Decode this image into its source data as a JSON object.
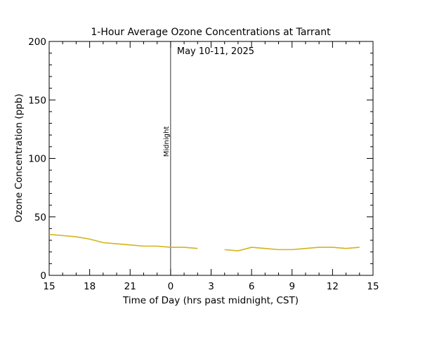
{
  "chart_data": {
    "type": "line",
    "title": "1-Hour Average Ozone Concentrations at Tarrant",
    "xlabel": "Time of Day (hrs past midnight, CST)",
    "ylabel": "Ozone Concentration (ppb)",
    "date_annotation": "May 10-11, 2025",
    "midnight_label": "Midnight",
    "midnight_at": 24,
    "xlim": [
      15,
      39
    ],
    "ylim": [
      0,
      200
    ],
    "x_ticks": [
      {
        "value": 15,
        "label": "15"
      },
      {
        "value": 18,
        "label": "18"
      },
      {
        "value": 21,
        "label": "21"
      },
      {
        "value": 24,
        "label": "0"
      },
      {
        "value": 27,
        "label": "3"
      },
      {
        "value": 30,
        "label": "6"
      },
      {
        "value": 33,
        "label": "9"
      },
      {
        "value": 36,
        "label": "12"
      },
      {
        "value": 39,
        "label": "15"
      }
    ],
    "y_ticks": [
      {
        "value": 0,
        "label": "0"
      },
      {
        "value": 50,
        "label": "50"
      },
      {
        "value": 100,
        "label": "100"
      },
      {
        "value": 150,
        "label": "150"
      },
      {
        "value": 200,
        "label": "200"
      }
    ],
    "grid": false,
    "series": [
      {
        "color": "#d4b21c",
        "segments": [
          [
            [
              15,
              35
            ],
            [
              16,
              34
            ],
            [
              17,
              33
            ],
            [
              18,
              31
            ],
            [
              19,
              28
            ],
            [
              20,
              27
            ],
            [
              21,
              26
            ],
            [
              22,
              25
            ],
            [
              23,
              25
            ],
            [
              24,
              24
            ],
            [
              25,
              24
            ],
            [
              26,
              23
            ]
          ],
          [
            [
              28,
              22
            ],
            [
              29,
              21
            ],
            [
              30,
              24
            ],
            [
              31,
              23
            ],
            [
              32,
              22
            ],
            [
              33,
              22
            ],
            [
              34,
              23
            ],
            [
              35,
              24
            ],
            [
              36,
              24
            ],
            [
              37,
              23
            ],
            [
              38,
              24
            ]
          ]
        ]
      }
    ]
  }
}
